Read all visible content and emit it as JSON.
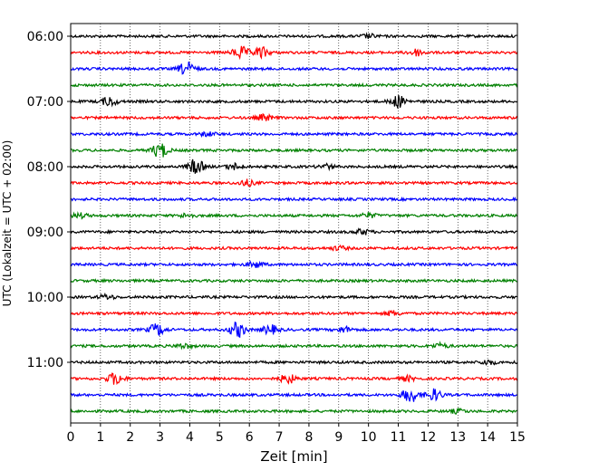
{
  "chart_data": {
    "type": "line",
    "title": "",
    "xlabel": "Zeit  [min]",
    "ylabel": "UTC (Lokalzeit = UTC + 02:00)",
    "xlim": [
      0,
      15
    ],
    "x_ticks": [
      "0",
      "1",
      "2",
      "3",
      "4",
      "5",
      "6",
      "7",
      "8",
      "9",
      "10",
      "11",
      "12",
      "13",
      "14",
      "15"
    ],
    "y_ticks": [
      {
        "label": "06:00",
        "row": 0
      },
      {
        "label": "07:00",
        "row": 4
      },
      {
        "label": "08:00",
        "row": 8
      },
      {
        "label": "09:00",
        "row": 12
      },
      {
        "label": "10:00",
        "row": 16
      },
      {
        "label": "11:00",
        "row": 20
      }
    ],
    "grid": "vertical-dotted",
    "legend": "none",
    "trace_colors": [
      "#000000",
      "#ff0000",
      "#0000ff",
      "#008000"
    ],
    "traces": [
      {
        "start": "06:00",
        "events": [
          {
            "t": 10.0,
            "amp": 0.25
          }
        ]
      },
      {
        "start": "06:15",
        "events": [
          {
            "t": 5.7,
            "amp": 0.8
          },
          {
            "t": 6.4,
            "amp": 0.7
          },
          {
            "t": 11.6,
            "amp": 0.45
          }
        ]
      },
      {
        "start": "06:30",
        "events": [
          {
            "t": 3.9,
            "amp": 0.9
          }
        ]
      },
      {
        "start": "06:45",
        "events": []
      },
      {
        "start": "07:00",
        "events": [
          {
            "t": 1.3,
            "amp": 0.6
          },
          {
            "t": 11.0,
            "amp": 0.8
          }
        ]
      },
      {
        "start": "07:15",
        "events": [
          {
            "t": 6.5,
            "amp": 0.4
          }
        ]
      },
      {
        "start": "07:30",
        "events": [
          {
            "t": 4.6,
            "amp": 0.25
          }
        ]
      },
      {
        "start": "07:45",
        "events": [
          {
            "t": 3.0,
            "amp": 1.0
          }
        ]
      },
      {
        "start": "08:00",
        "events": [
          {
            "t": 4.2,
            "amp": 1.0
          },
          {
            "t": 5.5,
            "amp": 0.4
          },
          {
            "t": 8.6,
            "amp": 0.3
          }
        ]
      },
      {
        "start": "08:15",
        "events": [
          {
            "t": 5.9,
            "amp": 0.4
          }
        ]
      },
      {
        "start": "08:30",
        "events": []
      },
      {
        "start": "08:45",
        "events": [
          {
            "t": 0.3,
            "amp": 0.3
          },
          {
            "t": 3.9,
            "amp": 0.25
          },
          {
            "t": 10.0,
            "amp": 0.3
          }
        ]
      },
      {
        "start": "09:00",
        "events": [
          {
            "t": 9.8,
            "amp": 0.35
          }
        ]
      },
      {
        "start": "09:15",
        "events": [
          {
            "t": 9.0,
            "amp": 0.25
          }
        ]
      },
      {
        "start": "09:30",
        "events": [
          {
            "t": 6.2,
            "amp": 0.4
          }
        ]
      },
      {
        "start": "09:45",
        "events": []
      },
      {
        "start": "10:00",
        "events": [
          {
            "t": 1.2,
            "amp": 0.3
          }
        ]
      },
      {
        "start": "10:15",
        "events": [
          {
            "t": 10.8,
            "amp": 0.3
          }
        ]
      },
      {
        "start": "10:30",
        "events": [
          {
            "t": 2.9,
            "amp": 0.8
          },
          {
            "t": 5.6,
            "amp": 1.0
          },
          {
            "t": 6.7,
            "amp": 0.6
          },
          {
            "t": 9.2,
            "amp": 0.35
          }
        ]
      },
      {
        "start": "10:45",
        "events": [
          {
            "t": 3.8,
            "amp": 0.3
          },
          {
            "t": 12.4,
            "amp": 0.3
          }
        ]
      },
      {
        "start": "11:00",
        "events": [
          {
            "t": 14.0,
            "amp": 0.3
          }
        ]
      },
      {
        "start": "11:15",
        "events": [
          {
            "t": 1.5,
            "amp": 0.8
          },
          {
            "t": 7.3,
            "amp": 0.6
          },
          {
            "t": 11.3,
            "amp": 0.3
          }
        ]
      },
      {
        "start": "11:30",
        "events": [
          {
            "t": 11.4,
            "amp": 1.0
          },
          {
            "t": 12.2,
            "amp": 0.75
          }
        ]
      },
      {
        "start": "11:45",
        "events": [
          {
            "t": 13.0,
            "amp": 0.25
          }
        ]
      }
    ]
  }
}
